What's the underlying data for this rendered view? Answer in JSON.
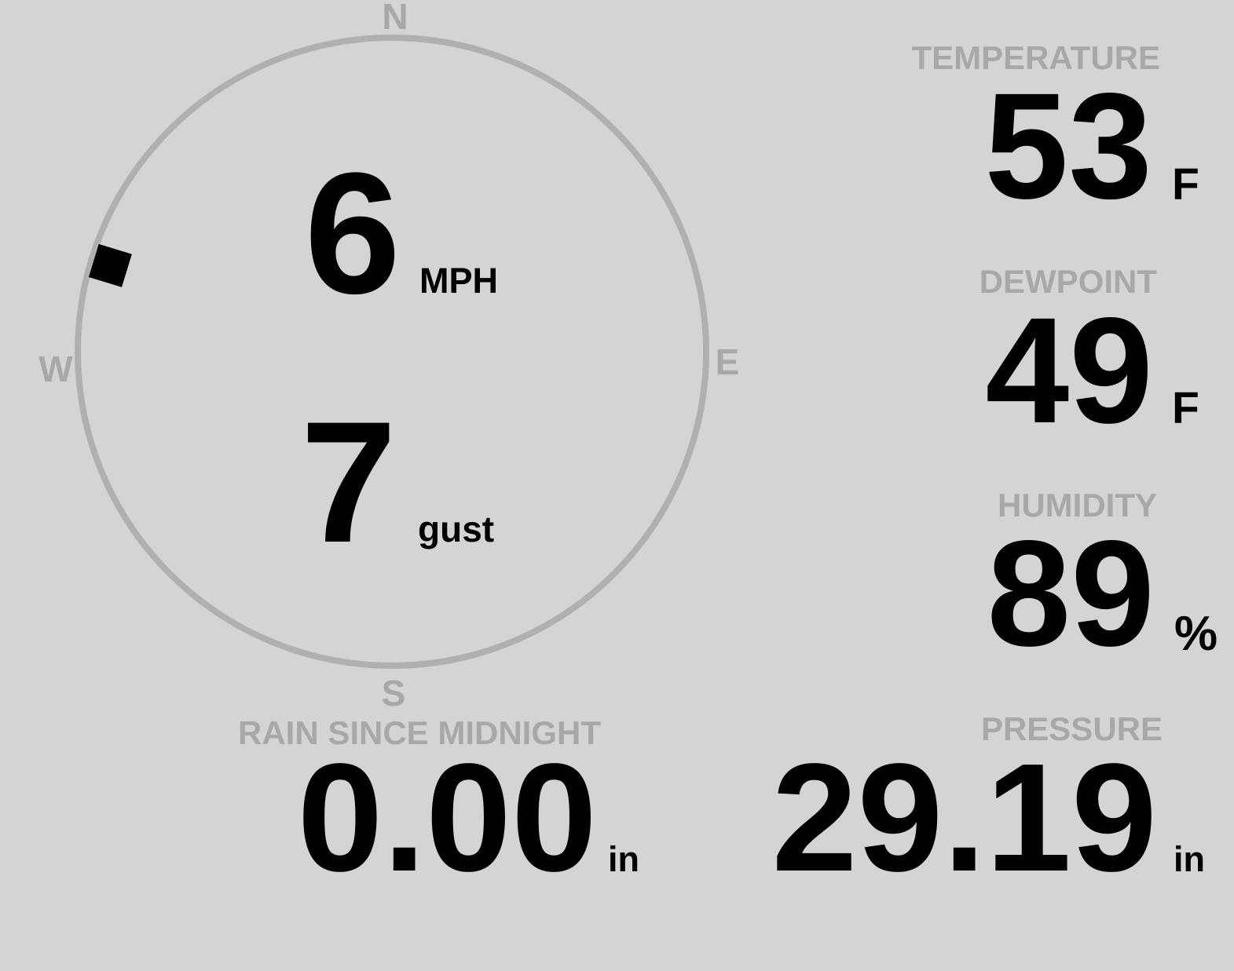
{
  "colors": {
    "background": "#d4d4d4",
    "muted": "#a8a8a8",
    "compass_ring": "#b0b0b0",
    "value_text": "#000000"
  },
  "wind": {
    "compass": {
      "north": "N",
      "east": "E",
      "south": "S",
      "west": "W"
    },
    "direction_degrees": 287,
    "speed_value": "6",
    "speed_unit": "MPH",
    "gust_value": "7",
    "gust_unit": "gust"
  },
  "metrics": {
    "temperature": {
      "label": "TEMPERATURE",
      "value": "53",
      "unit": "F"
    },
    "dewpoint": {
      "label": "DEWPOINT",
      "value": "49",
      "unit": "F"
    },
    "humidity": {
      "label": "HUMIDITY",
      "value": "89",
      "unit": "%"
    },
    "rain": {
      "label": "RAIN SINCE MIDNIGHT",
      "value": "0.00",
      "unit": "in"
    },
    "pressure": {
      "label": "PRESSURE",
      "value": "29.19",
      "unit": "in"
    }
  }
}
